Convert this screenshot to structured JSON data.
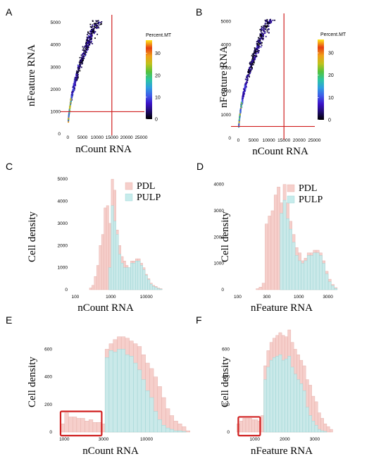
{
  "colors": {
    "pdl": "#f6cfcb",
    "pdl_edge": "#e3aaa4",
    "pulp": "#c6ecec",
    "pulp_edge": "#96d2d2",
    "threshold": "#d02020",
    "colorscale": [
      "#000000",
      "#1f0b6e",
      "#3b12c9",
      "#3e5ce8",
      "#2f9ee0",
      "#2cc6a0",
      "#55c23c",
      "#c0c21c",
      "#f0a018",
      "#e53d12",
      "#ffe81a"
    ]
  },
  "chart_data": [
    {
      "id": "A",
      "panel_letter": "A",
      "type": "scatter",
      "xlabel": "nCount RNA",
      "ylabel": "nFeature RNA",
      "xlim": [
        -1500,
        28000
      ],
      "ylim": [
        0,
        5100
      ],
      "xticks": [
        0,
        5000,
        10000,
        15000,
        20000,
        25000
      ],
      "yticks": [
        0,
        1000,
        2000,
        3000,
        4000,
        5000
      ],
      "tick_labels_x": [
        "0",
        "5000",
        "10000",
        "15000",
        "20000",
        "25000"
      ],
      "tick_labels_y": [
        "0",
        "1000",
        "2000",
        "3000",
        "4000",
        "5000"
      ],
      "vline": 15000,
      "hline": 1000,
      "trend": {
        "a": 2600,
        "b": 0.22
      },
      "x_range": [
        200,
        23000
      ],
      "colorbar": {
        "title": "Percent.MT",
        "ticks": [
          0,
          10,
          20,
          30
        ],
        "tick_labels": [
          "0",
          "10",
          "20",
          "30"
        ],
        "range": [
          0,
          36
        ]
      }
    },
    {
      "id": "B",
      "panel_letter": "B",
      "type": "scatter",
      "xlabel": "nCount RNA",
      "ylabel": "nFeature RNA",
      "xlim": [
        -1500,
        27000
      ],
      "ylim": [
        0,
        5100
      ],
      "xticks": [
        0,
        5000,
        10000,
        15000,
        20000,
        25000
      ],
      "yticks": [
        0,
        1000,
        2000,
        3000,
        4000,
        5000
      ],
      "tick_labels_x": [
        "0",
        "5000",
        "10000",
        "15000",
        "20000",
        "25000"
      ],
      "tick_labels_y": [
        "0",
        "1000",
        "2000",
        "3000",
        "4000",
        "5000"
      ],
      "vline": 15000,
      "hline": 500,
      "trend": {
        "a": 2600,
        "b": 0.22
      },
      "x_range": [
        150,
        18500
      ],
      "colorbar": {
        "title": "Percent.MT",
        "ticks": [
          0,
          10,
          20,
          30
        ],
        "tick_labels": [
          "0",
          "10",
          "20",
          "30"
        ],
        "range": [
          0,
          36
        ]
      }
    },
    {
      "id": "C",
      "panel_letter": "C",
      "type": "histogram",
      "xscale": "log",
      "xlabel": "nCount RNA",
      "ylabel": "Cell density",
      "xlim": [
        80,
        60000
      ],
      "ylim": [
        0,
        5100
      ],
      "xticks": [
        100,
        1000,
        10000
      ],
      "tick_labels_x": [
        "100",
        "1000",
        "10000"
      ],
      "yticks": [
        0,
        1000,
        2000,
        3000,
        4000,
        5000
      ],
      "tick_labels_y": [
        "0",
        "1000",
        "2000",
        "3000",
        "4000",
        "5000"
      ],
      "bin_start": 250,
      "bin_ratio": 1.17,
      "series": [
        {
          "name": "PDL",
          "values": [
            80,
            200,
            600,
            1100,
            2000,
            2500,
            3700,
            3800,
            3000,
            5000,
            4500,
            2700,
            2000,
            1500,
            1300,
            1100,
            1000,
            1300,
            1300,
            1400,
            1400,
            1200,
            1000,
            700,
            500,
            300,
            200,
            150,
            80,
            50
          ]
        },
        {
          "name": "PULP",
          "values": [
            0,
            0,
            0,
            0,
            0,
            0,
            0,
            0,
            1000,
            3800,
            3100,
            2500,
            1600,
            1200,
            1000,
            1000,
            1000,
            1200,
            1200,
            1300,
            1300,
            1100,
            900,
            650,
            450,
            250,
            150,
            100,
            50,
            30
          ]
        }
      ],
      "legend": {
        "position": "top-right"
      }
    },
    {
      "id": "D",
      "panel_letter": "D",
      "type": "histogram",
      "xscale": "log",
      "xlabel": "nFeature RNA",
      "ylabel": "Cell density",
      "xlim": [
        70,
        9000
      ],
      "ylim": [
        0,
        4150
      ],
      "xticks": [
        100,
        300,
        1000,
        3000
      ],
      "tick_labels_x": [
        "100",
        "300",
        "1000",
        "3000"
      ],
      "yticks": [
        0,
        1000,
        2000,
        3000,
        4000
      ],
      "tick_labels_y": [
        "0",
        "1000",
        "2000",
        "3000",
        "4000"
      ],
      "bin_start": 200,
      "bin_ratio": 1.12,
      "series": [
        {
          "name": "PDL",
          "values": [
            40,
            100,
            250,
            2500,
            2800,
            3000,
            3600,
            3900,
            3300,
            4000,
            3300,
            2600,
            2100,
            1600,
            1400,
            1100,
            1200,
            1400,
            1400,
            1500,
            1500,
            1400,
            1100,
            700,
            400,
            200,
            80
          ]
        },
        {
          "name": "PULP",
          "values": [
            0,
            0,
            0,
            0,
            0,
            0,
            0,
            0,
            2900,
            3400,
            2700,
            2300,
            1800,
            1300,
            1100,
            1000,
            1100,
            1300,
            1300,
            1400,
            1400,
            1300,
            1000,
            600,
            300,
            150,
            50
          ]
        }
      ],
      "legend": {
        "position": "top-right"
      }
    },
    {
      "id": "E",
      "panel_letter": "E",
      "type": "histogram",
      "xscale": "log",
      "xlabel": "nCount RNA",
      "ylabel": "Cell density",
      "xlim": [
        800,
        22000
      ],
      "ylim": [
        0,
        740
      ],
      "xticks": [
        1000,
        3000,
        10000
      ],
      "tick_labels_x": [
        "1000",
        "3000",
        "10000"
      ],
      "yticks": [
        0,
        200,
        400,
        600
      ],
      "tick_labels_y": [
        "0",
        "200",
        "400",
        "600"
      ],
      "bin_start": 900,
      "bin_ratio": 1.12,
      "series": [
        {
          "name": "PDL",
          "values": [
            60,
            140,
            110,
            110,
            100,
            100,
            80,
            90,
            70,
            70,
            60,
            600,
            640,
            670,
            690,
            690,
            680,
            660,
            640,
            620,
            560,
            500,
            460,
            400,
            330,
            250,
            170,
            120,
            80,
            60,
            40,
            10
          ]
        },
        {
          "name": "PULP",
          "values": [
            0,
            0,
            0,
            0,
            0,
            0,
            0,
            0,
            0,
            0,
            0,
            540,
            590,
            580,
            600,
            600,
            560,
            550,
            500,
            450,
            380,
            300,
            250,
            150,
            90,
            50,
            30,
            20,
            10,
            10,
            5,
            0
          ]
        }
      ],
      "highlight_box": {
        "x": [
          900,
          2850
        ],
        "y": [
          0,
          150
        ]
      }
    },
    {
      "id": "F",
      "panel_letter": "F",
      "type": "histogram",
      "xscale": "linear",
      "xlabel": "nFeature RNA",
      "ylabel": "Cell density",
      "xlim": [
        300,
        4200
      ],
      "ylim": [
        0,
        740
      ],
      "xticks": [
        1000,
        2000,
        3000
      ],
      "tick_labels_x": [
        "1000",
        "2000",
        "3000"
      ],
      "yticks": [
        0,
        200,
        400,
        600
      ],
      "tick_labels_y": [
        "0",
        "200",
        "400",
        "600"
      ],
      "bin_start": 400,
      "bin_width": 100,
      "series": [
        {
          "name": "PDL",
          "values": [
            60,
            80,
            100,
            100,
            100,
            90,
            90,
            80,
            120,
            480,
            590,
            650,
            680,
            700,
            720,
            700,
            690,
            740,
            650,
            600,
            560,
            520,
            480,
            380,
            340,
            260,
            220,
            140,
            100,
            60,
            40,
            20
          ]
        },
        {
          "name": "PULP",
          "values": [
            0,
            0,
            0,
            0,
            0,
            0,
            0,
            0,
            0,
            380,
            470,
            520,
            540,
            550,
            560,
            520,
            530,
            550,
            470,
            420,
            380,
            350,
            300,
            180,
            120,
            80,
            50,
            20,
            10,
            5,
            0,
            0
          ]
        }
      ],
      "highlight_box": {
        "x": [
          450,
          1180
        ],
        "y": [
          0,
          110
        ]
      }
    }
  ]
}
